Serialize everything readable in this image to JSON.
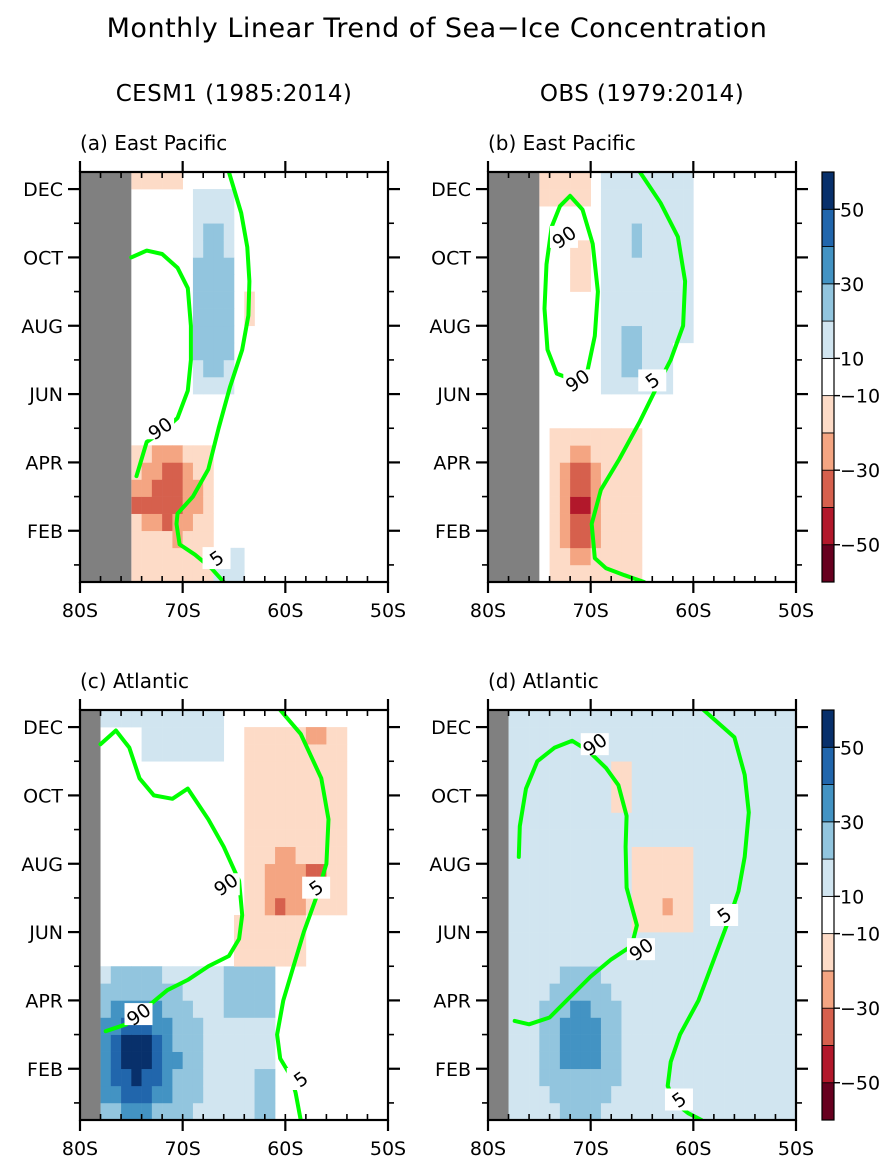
{
  "title": "Monthly Linear Trend of Sea−Ice Concentration",
  "columns": [
    "CESM1 (1985:2014)",
    "OBS (1979:2014)"
  ],
  "colors": {
    "land": "#808080",
    "contour": "#00ff00",
    "levels": [
      {
        "min": 40,
        "max": 999,
        "color": "#08306b"
      },
      {
        "min": 30,
        "max": 40,
        "color": "#2166ac"
      },
      {
        "min": 20,
        "max": 30,
        "color": "#4393c3"
      },
      {
        "min": 10,
        "max": 20,
        "color": "#92c5de"
      },
      {
        "min": 5,
        "max": 10,
        "color": "#d1e5f0"
      },
      {
        "min": -5,
        "max": 5,
        "color": "#ffffff"
      },
      {
        "min": -10,
        "max": -5,
        "color": "#fddbc7"
      },
      {
        "min": -20,
        "max": -10,
        "color": "#f4a582"
      },
      {
        "min": -30,
        "max": -20,
        "color": "#d6604d"
      },
      {
        "min": -40,
        "max": -30,
        "color": "#b2182b"
      },
      {
        "min": -999,
        "max": -40,
        "color": "#67001f"
      }
    ]
  },
  "colorbar": {
    "labels": [
      "50",
      "30",
      "10",
      "−10",
      "−30",
      "−50"
    ],
    "colors": [
      "#67001f",
      "#b2182b",
      "#d6604d",
      "#f4a582",
      "#fddbc7",
      "#ffffff",
      "#d1e5f0",
      "#92c5de",
      "#4393c3",
      "#2166ac",
      "#08306b"
    ]
  },
  "chart_data": [
    {
      "type": "heatmap",
      "label": "(a) East Pacific",
      "x_ticks": [
        "80S",
        "70S",
        "60S",
        "50S"
      ],
      "y_ticks": [
        "DEC",
        "OCT",
        "AUG",
        "JUN",
        "APR",
        "FEB"
      ],
      "xlim": [
        80,
        50
      ],
      "ylim": [
        1,
        12
      ],
      "grid": {
        "lat_start": 80,
        "lat_step": 1,
        "rows_month_start": 1,
        "rows_month_step": 0.5
      },
      "land_edge_lat": 75,
      "contour_90_label": "90",
      "contour_5_label": "5",
      "trend_grid": [
        "4-0",
        "4-0",
        "4-0",
        "3-0",
        "4-0",
        "4-0",
        "3-1",
        "3-0",
        "2-2",
        "3-1",
        "4-2",
        "4-1",
        "5-2",
        "6-0",
        "4-3",
        "6-1",
        "7-4",
        "5-0",
        "7-5",
        "8-1",
        "8-2",
        "5-0",
        "7-5",
        "7-0",
        "6-0",
        "8-2",
        "8-1",
        "6-0",
        "7-1",
        "8-0",
        "8-1",
        "6-0"
      ],
      "contour_90": [
        [
          70,
          10.2
        ],
        [
          71,
          10.5
        ],
        [
          72,
          10.9
        ],
        [
          74.5,
          11.1
        ],
        [
          75,
          11.0
        ]
      ],
      "contour_5": [
        [
          62,
          12
        ]
      ]
    },
    {
      "type": "heatmap",
      "label": "(b) East Pacific",
      "x_ticks": [
        "80S",
        "70S",
        "60S",
        "50S"
      ],
      "y_ticks": [
        "DEC",
        "OCT",
        "AUG",
        "JUN",
        "APR",
        "FEB"
      ],
      "xlim": [
        80,
        50
      ],
      "ylim": [
        1,
        12
      ],
      "land_edge_lat": 75,
      "contour_90_label": "90",
      "contour_5_label": "5"
    },
    {
      "type": "heatmap",
      "label": "(c) Atlantic",
      "x_ticks": [
        "80S",
        "70S",
        "60S",
        "50S"
      ],
      "y_ticks": [
        "DEC",
        "OCT",
        "AUG",
        "JUN",
        "APR",
        "FEB"
      ],
      "xlim": [
        80,
        50
      ],
      "ylim": [
        1,
        12
      ],
      "land_edge_lat": 78,
      "contour_90_label": "90",
      "contour_5_label": "5"
    },
    {
      "type": "heatmap",
      "label": "(d) Atlantic",
      "x_ticks": [
        "80S",
        "70S",
        "60S",
        "50S"
      ],
      "y_ticks": [
        "DEC",
        "OCT",
        "AUG",
        "JUN",
        "APR",
        "FEB"
      ],
      "xlim": [
        80,
        50
      ],
      "ylim": [
        1,
        12
      ],
      "land_edge_lat": 78,
      "contour_90_label": "90",
      "contour_5_label": "5"
    }
  ]
}
